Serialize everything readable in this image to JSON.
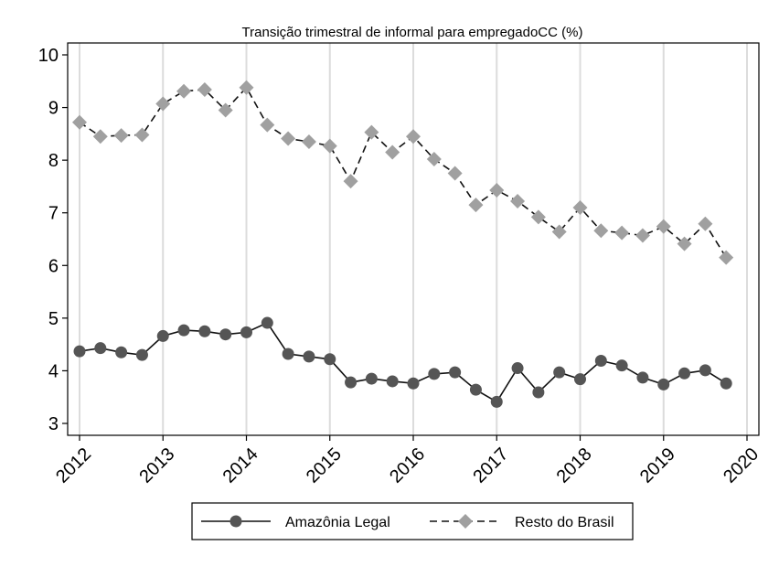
{
  "chart_data": {
    "type": "line",
    "title": "Transição trimestral de informal para empregadoCC (%)",
    "xlabel": "",
    "ylabel": "",
    "xlim": [
      2012,
      2020
    ],
    "ylim": [
      3,
      10
    ],
    "x_ticks": [
      "2012",
      "2013",
      "2014",
      "2015",
      "2016",
      "2017",
      "2018",
      "2019",
      "2020"
    ],
    "y_ticks": [
      "3",
      "4",
      "5",
      "6",
      "7",
      "8",
      "9",
      "10"
    ],
    "grid": "vertical",
    "legend_position": "bottom",
    "x": [
      2012.0,
      2012.25,
      2012.5,
      2012.75,
      2013.0,
      2013.25,
      2013.5,
      2013.75,
      2014.0,
      2014.25,
      2014.5,
      2014.75,
      2015.0,
      2015.25,
      2015.5,
      2015.75,
      2016.0,
      2016.25,
      2016.5,
      2016.75,
      2017.0,
      2017.25,
      2017.5,
      2017.75,
      2018.0,
      2018.25,
      2018.5,
      2018.75,
      2019.0,
      2019.25,
      2019.5,
      2019.75
    ],
    "series": [
      {
        "name": "Amazônia Legal",
        "color": "#555555",
        "marker": "circle",
        "line": "solid",
        "values": [
          4.37,
          4.43,
          4.35,
          4.3,
          4.66,
          4.77,
          4.75,
          4.69,
          4.73,
          4.91,
          4.32,
          4.27,
          4.22,
          3.78,
          3.85,
          3.8,
          3.76,
          3.94,
          3.97,
          3.64,
          3.41,
          4.05,
          3.59,
          3.97,
          3.84,
          4.19,
          4.1,
          3.87,
          3.74,
          3.95,
          4.01,
          3.76
        ]
      },
      {
        "name": "Resto do Brasil",
        "color": "#a0a0a0",
        "marker": "diamond",
        "line": "dashed",
        "values": [
          8.72,
          8.45,
          8.47,
          8.48,
          9.07,
          9.31,
          9.34,
          8.95,
          9.38,
          8.67,
          8.41,
          8.35,
          8.27,
          7.6,
          8.53,
          8.15,
          8.45,
          8.02,
          7.75,
          7.15,
          7.43,
          7.22,
          6.92,
          6.64,
          7.1,
          6.66,
          6.62,
          6.57,
          6.74,
          6.41,
          6.79,
          6.15
        ]
      }
    ]
  }
}
